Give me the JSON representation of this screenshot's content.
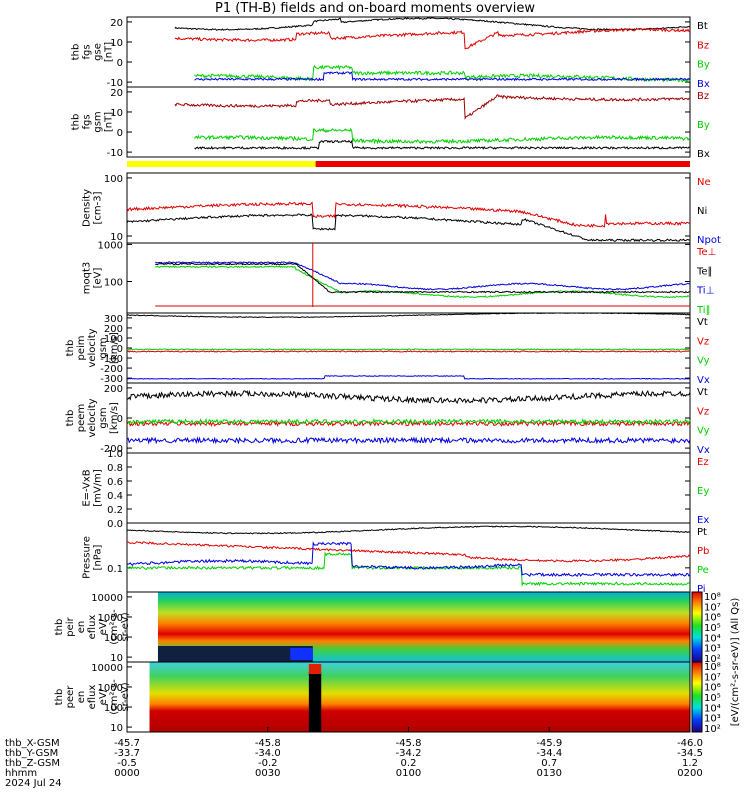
{
  "title": "P1 (TH-B) fields and on-board moments overview",
  "colors": {
    "black": "#000000",
    "red": "#e00000",
    "green": "#00d000",
    "blue": "#0000e0",
    "yellow": "#ffff00",
    "barred": "#ee0000"
  },
  "chart_data": [
    {
      "id": "fgs_gse",
      "type": "line",
      "ylabel": [
        "thb",
        "fgs",
        "gse",
        "[nT]"
      ],
      "yticks": [
        "20",
        "10",
        "0",
        "-10"
      ],
      "ylim": [
        -15,
        25
      ],
      "series": [
        {
          "name": "Bt",
          "color": "black"
        },
        {
          "name": "Bz",
          "color": "red"
        },
        {
          "name": "By",
          "color": "green"
        },
        {
          "name": "Bx",
          "color": "blue"
        }
      ]
    },
    {
      "id": "fgs_gsm",
      "type": "line",
      "ylabel": [
        "thb",
        "fgs",
        "gsm",
        "[nT]"
      ],
      "yticks": [
        "20",
        "10",
        "0",
        "-10"
      ],
      "ylim": [
        -15,
        25
      ],
      "series": [
        {
          "name": "Bz",
          "color": "darkred"
        },
        {
          "name": "By",
          "color": "green"
        },
        {
          "name": "Bx",
          "color": "black"
        }
      ]
    },
    {
      "id": "density",
      "type": "line",
      "ylabel": [
        "Density",
        "[cm-3]"
      ],
      "yticks": [
        "100",
        "10"
      ],
      "ylim": [
        5,
        120
      ],
      "log": true,
      "series": [
        {
          "name": "Ne",
          "color": "red"
        },
        {
          "name": "Ni",
          "color": "black"
        },
        {
          "name": "Npot",
          "color": "blue"
        }
      ]
    },
    {
      "id": "temperature",
      "type": "line",
      "ylabel": [
        "moqt3",
        "[eV]"
      ],
      "yticks": [
        "1000",
        "100"
      ],
      "ylim": [
        20,
        1000
      ],
      "log": true,
      "series": [
        {
          "name": "Te⊥",
          "color": "red"
        },
        {
          "name": "Te∥",
          "color": "black"
        },
        {
          "name": "Ti⊥",
          "color": "blue"
        },
        {
          "name": "Ti∥",
          "color": "green"
        }
      ]
    },
    {
      "id": "peim_velocity",
      "type": "line",
      "ylabel": [
        "thb",
        "peim",
        "velocity",
        "gsm",
        "[km/s]"
      ],
      "yticks": [
        "300",
        "200",
        "100",
        "0",
        "-100",
        "-200",
        "-300"
      ],
      "ylim": [
        -330,
        310
      ],
      "series": [
        {
          "name": "Vt",
          "color": "black"
        },
        {
          "name": "Vz",
          "color": "red"
        },
        {
          "name": "Vy",
          "color": "green"
        },
        {
          "name": "Vx",
          "color": "blue"
        }
      ]
    },
    {
      "id": "peem_velocity",
      "type": "line",
      "ylabel": [
        "thb",
        "peem",
        "velocity",
        "gsm",
        "[km/s]"
      ],
      "yticks": [
        "200",
        "0",
        "-200"
      ],
      "ylim": [
        -320,
        380
      ],
      "series": [
        {
          "name": "Vt",
          "color": "black"
        },
        {
          "name": "Vz",
          "color": "red"
        },
        {
          "name": "Vy",
          "color": "green"
        },
        {
          "name": "Vx",
          "color": "blue"
        }
      ]
    },
    {
      "id": "efield",
      "type": "line",
      "ylabel": [
        "E=-VxB",
        "[mV/m]"
      ],
      "yticks": [
        "1.0",
        "0.8",
        "0.6",
        "0.4",
        "0.2",
        "0.0"
      ],
      "ylim": [
        0,
        1
      ],
      "series": [
        {
          "name": "Ez",
          "color": "red"
        },
        {
          "name": "Ey",
          "color": "green"
        },
        {
          "name": "Ex",
          "color": "blue"
        }
      ]
    },
    {
      "id": "pressure",
      "type": "line",
      "ylabel": [
        "Pressure",
        "[nPa]"
      ],
      "yticks": [
        "0.1"
      ],
      "log": true,
      "series": [
        {
          "name": "Pt",
          "color": "black"
        },
        {
          "name": "Pb",
          "color": "red"
        },
        {
          "name": "Pe",
          "color": "green"
        },
        {
          "name": "Pi",
          "color": "blue"
        }
      ]
    },
    {
      "id": "peir_spec",
      "type": "heatmap",
      "ylabel": [
        "thb",
        "peir",
        "en",
        "eflux",
        "eV/",
        "(cm²-s-",
        "sr-eV)"
      ],
      "yticks": [
        "10000",
        "1000",
        "100",
        "10"
      ]
    },
    {
      "id": "peer_spec",
      "type": "heatmap",
      "ylabel": [
        "thb",
        "peer",
        "en",
        "eflux",
        "eV/",
        "(cm²-s-",
        "sr-eV)"
      ],
      "yticks": [
        "10000",
        "1000",
        "100",
        "10"
      ]
    }
  ],
  "colorbar": {
    "labels": [
      "10⁸",
      "10⁷",
      "10⁶",
      "10⁵",
      "10⁴",
      "10³",
      "10²",
      "10⁸",
      "10⁷",
      "10⁶",
      "10⁵",
      "10⁴",
      "10³",
      "10²"
    ],
    "title": "[eV/(cm²-s-sr-eV)] (All Qs)"
  },
  "xaxis": {
    "rows": [
      {
        "label": "thb_X-GSM",
        "values": [
          "-45.7",
          "-45.8",
          "-45.8",
          "-45.9",
          "-46.0"
        ]
      },
      {
        "label": "thb_Y-GSM",
        "values": [
          "-33.7",
          "-34.0",
          "-34.2",
          "-34.4",
          "-34.5"
        ]
      },
      {
        "label": "thb_Z-GSM",
        "values": [
          "-0.5",
          "-0.2",
          "0.2",
          "0.7",
          "1.2"
        ]
      },
      {
        "label": "hhmm",
        "values": [
          "0000",
          "0030",
          "0100",
          "0130",
          "0200"
        ]
      }
    ],
    "date": "2024 Jul 24"
  }
}
